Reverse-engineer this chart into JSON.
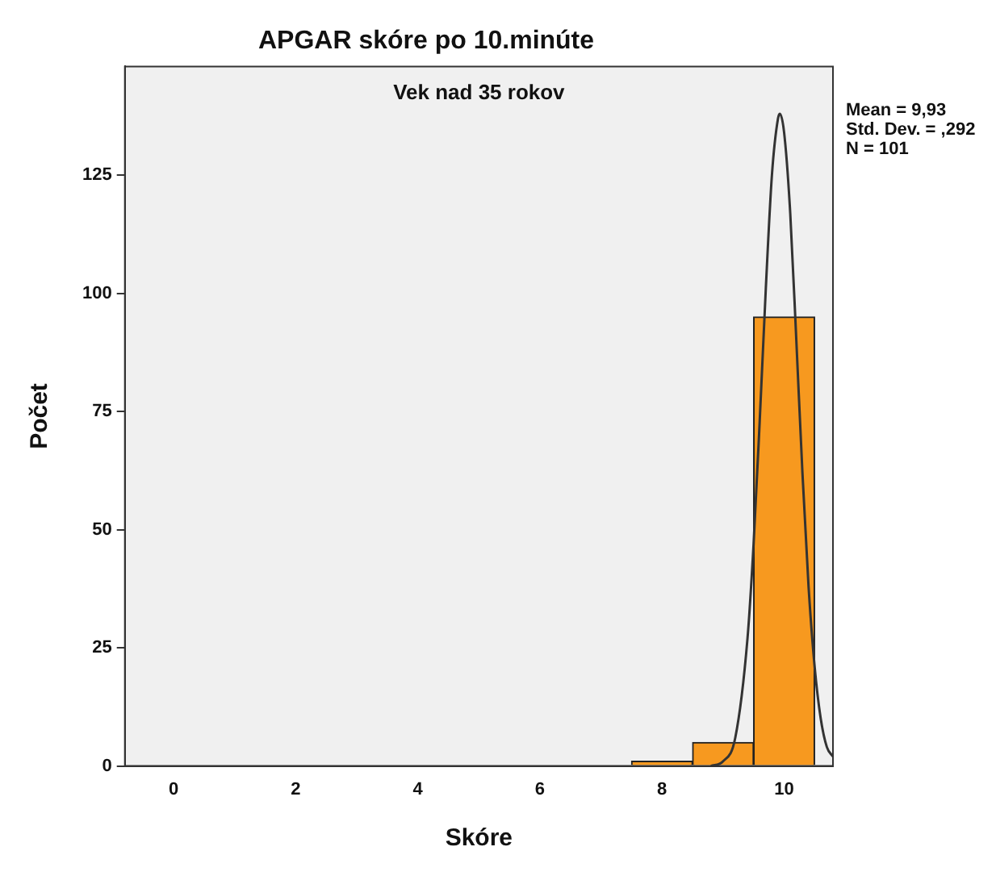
{
  "chart_data": {
    "type": "histogram",
    "title": "APGAR skóre po 10.minúte",
    "subtitle": "Vek nad 35 rokov",
    "xlabel": "Skóre",
    "ylabel": "Počet",
    "bins": [
      7.5,
      8.5,
      9.5,
      10.5
    ],
    "values": [
      1,
      5,
      95
    ],
    "color": "#f7991f",
    "series": [
      {
        "type": "line",
        "color": "#333333",
        "x": [
          8.8,
          9.0,
          9.2,
          9.4,
          9.5,
          9.6,
          9.7,
          9.8,
          9.9,
          9.93,
          10.0,
          10.1,
          10.2,
          10.3,
          10.4,
          10.5,
          10.6,
          10.7,
          10.8
        ],
        "values": [
          0,
          1,
          6,
          27,
          47,
          73,
          101,
          125,
          137,
          138,
          134,
          117,
          90,
          62,
          38,
          21,
          10,
          4,
          2
        ]
      }
    ],
    "xlim": [
      -0.8,
      10.8
    ],
    "xticks": [
      0,
      2,
      4,
      6,
      8,
      10
    ],
    "ylim": [
      0,
      148
    ],
    "yticks": [
      0,
      25,
      50,
      75,
      100,
      125
    ],
    "annotations": [
      "Mean = 9,93",
      "Std. Dev. = ,292",
      "N = 101"
    ],
    "grid": false,
    "legend": false,
    "marker": "none",
    "line_style": "solid"
  }
}
